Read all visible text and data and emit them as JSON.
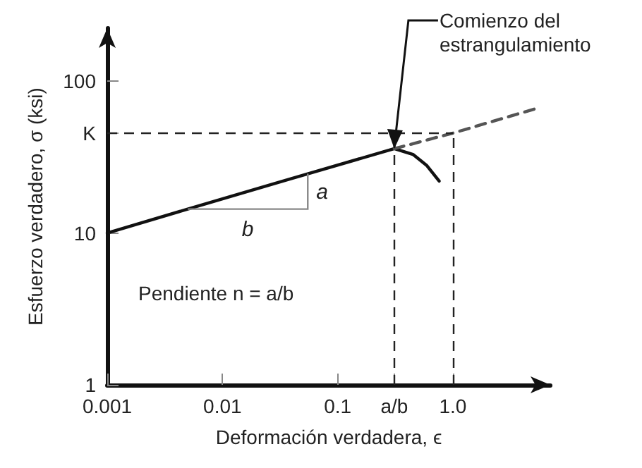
{
  "chart_data": {
    "type": "line",
    "xlabel": "Deformación verdadera, ϵ",
    "ylabel": "Esfuerzo verdadero, σ (ksi)",
    "log": "xy",
    "xlim": [
      0.001,
      7
    ],
    "ylim": [
      1,
      224
    ],
    "xticks": [
      0.001,
      0.01,
      0.1,
      {
        "value": 0.31,
        "label": "a/b"
      },
      {
        "value": 1,
        "label": "1.0"
      }
    ],
    "yticks": [
      1,
      10,
      {
        "value": 45.6,
        "label": "K"
      },
      100
    ],
    "grid": false,
    "marker": "none",
    "series": [
      {
        "color": "#111111",
        "line_style": "solid",
        "x": [
          0.001,
          0.005,
          0.055,
          0.31,
          0.45,
          0.59,
          0.76
        ],
        "values": [
          10,
          14.4,
          24.6,
          36,
          33,
          28,
          22
        ]
      },
      {
        "type": "line",
        "color": "#555555",
        "line_style": "dashed",
        "x": [
          0.31,
          1,
          5.2
        ],
        "values": [
          36,
          45.6,
          66
        ]
      }
    ],
    "ref_lines": [
      {
        "axis": "y",
        "value": 45.6,
        "line_style": "dashed"
      },
      {
        "axis": "x",
        "value": 0.31,
        "line_style": "dashed"
      },
      {
        "axis": "x",
        "value": 1,
        "line_style": "dashed"
      }
    ],
    "annotations": [
      {
        "text": "Comienzo del estrangulamiento",
        "x": 0.31,
        "y": 36
      },
      {
        "text": "a",
        "x": 0.055,
        "y": 24.6
      },
      "b",
      "Pendiente n = a/b"
    ]
  }
}
